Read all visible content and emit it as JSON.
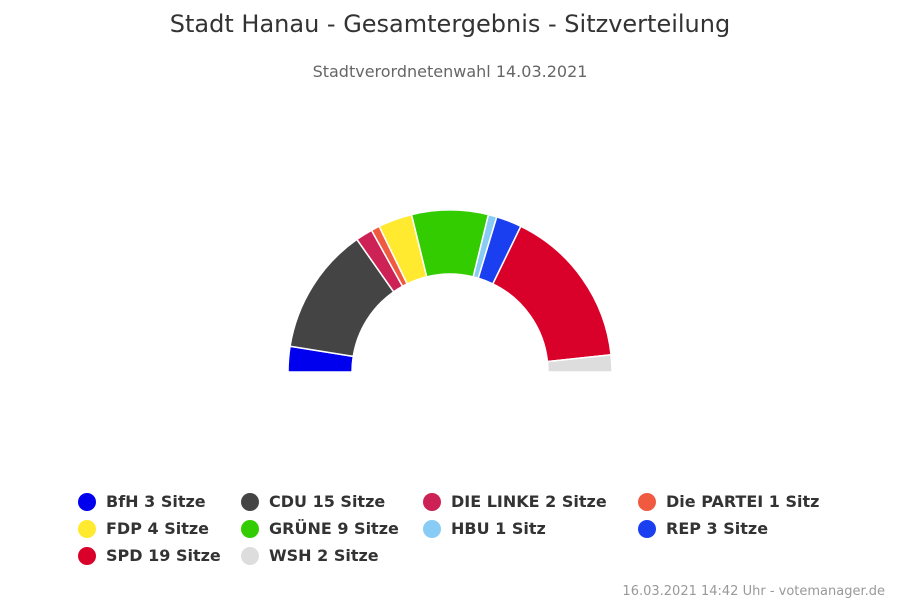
{
  "title": "Stadt Hanau - Gesamtergebnis - Sitzverteilung",
  "subtitle": "Stadtverordnetenwahl 14.03.2021",
  "credits": "16.03.2021 14:42 Uhr - votemanager.de",
  "chart_data": {
    "type": "pie",
    "variant": "parliament-semicircle",
    "title": "Stadt Hanau - Gesamtergebnis - Sitzverteilung",
    "subtitle": "Stadtverordnetenwahl 14.03.2021",
    "legend_position": "bottom",
    "series": [
      {
        "name": "BfH",
        "value": 3,
        "label": "BfH 3 Sitze",
        "color": "#0000ee"
      },
      {
        "name": "CDU",
        "value": 15,
        "label": "CDU 15 Sitze",
        "color": "#444444"
      },
      {
        "name": "DIE LINKE",
        "value": 2,
        "label": "DIE LINKE 2 Sitze",
        "color": "#cc2255"
      },
      {
        "name": "Die PARTEI",
        "value": 1,
        "label": "Die PARTEI 1 Sitz",
        "color": "#f05a40"
      },
      {
        "name": "FDP",
        "value": 4,
        "label": "FDP 4 Sitze",
        "color": "#ffea30"
      },
      {
        "name": "GRÜNE",
        "value": 9,
        "label": "GRÜNE 9 Sitze",
        "color": "#33cc00"
      },
      {
        "name": "HBU",
        "value": 1,
        "label": "HBU 1 Sitz",
        "color": "#88ccf5"
      },
      {
        "name": "REP",
        "value": 3,
        "label": "REP 3 Sitze",
        "color": "#1a3ff0"
      },
      {
        "name": "SPD",
        "value": 19,
        "label": "SPD 19 Sitze",
        "color": "#d9002a"
      },
      {
        "name": "WSH",
        "value": 2,
        "label": "WSH 2 Sitze",
        "color": "#dddddd"
      }
    ]
  }
}
